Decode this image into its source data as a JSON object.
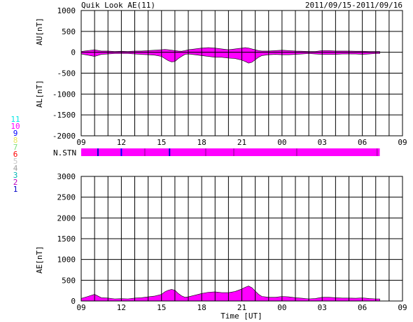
{
  "header": {
    "title": "Quik Look AE(11)",
    "date_range": "2011/09/15-2011/09/16"
  },
  "station_legend": [
    {
      "label": "11",
      "color": "#00e5e5"
    },
    {
      "label": "10",
      "color": "#ff00ff"
    },
    {
      "label": "9",
      "color": "#0000ff"
    },
    {
      "label": "8",
      "color": "#e8e85a"
    },
    {
      "label": "7",
      "color": "#7be07b"
    },
    {
      "label": "6",
      "color": "#ff0000"
    },
    {
      "label": "5",
      "color": "#c8c8c8"
    },
    {
      "label": "4",
      "color": "#a0a0a0"
    },
    {
      "label": "3",
      "color": "#00b4b4"
    },
    {
      "label": "2",
      "color": "#c000c0"
    },
    {
      "label": "1",
      "color": "#0000c8"
    }
  ],
  "x_tick_labels": [
    "09",
    "12",
    "15",
    "18",
    "21",
    "00",
    "03",
    "06",
    "09"
  ],
  "x_axis_title": "Time [UT]",
  "nstn_label": "N.STN",
  "chart_data": [
    {
      "type": "area",
      "name": "AU/AL",
      "ylabel_top": "AU[nT]",
      "ylabel_bottom": "AL[nT]",
      "ylim": [
        -2000,
        1000
      ],
      "yticks": [
        1000,
        500,
        0,
        -500,
        -1000,
        -1500,
        -2000
      ],
      "xlim_hours": [
        9,
        33
      ],
      "grid": "vertical-each-hour",
      "fill_color": "#ff00ff",
      "x_hours": [
        9.0,
        9.5,
        10.0,
        10.5,
        11.0,
        11.5,
        12.0,
        12.5,
        13.0,
        13.5,
        14.0,
        14.5,
        15.0,
        15.25,
        15.5,
        15.75,
        16.0,
        16.25,
        16.5,
        16.75,
        17.0,
        17.5,
        18.0,
        18.5,
        19.0,
        19.5,
        20.0,
        20.5,
        21.0,
        21.25,
        21.5,
        21.75,
        22.0,
        22.25,
        22.5,
        23.0,
        23.5,
        24.0,
        24.5,
        25.0,
        25.5,
        26.0,
        26.5,
        27.0,
        27.5,
        28.0,
        28.5,
        29.0,
        29.5,
        30.0,
        30.5,
        31.0,
        31.3
      ],
      "au": [
        20,
        40,
        60,
        30,
        30,
        20,
        25,
        20,
        30,
        30,
        40,
        50,
        60,
        70,
        60,
        50,
        40,
        30,
        25,
        40,
        60,
        80,
        100,
        110,
        100,
        80,
        60,
        80,
        100,
        110,
        100,
        80,
        60,
        40,
        30,
        30,
        40,
        50,
        40,
        30,
        25,
        20,
        20,
        40,
        40,
        30,
        30,
        30,
        25,
        25,
        20,
        20,
        20
      ],
      "al": [
        -40,
        -70,
        -100,
        -50,
        -40,
        -30,
        -30,
        -30,
        -40,
        -50,
        -60,
        -70,
        -100,
        -150,
        -200,
        -230,
        -220,
        -150,
        -100,
        -50,
        -40,
        -60,
        -80,
        -100,
        -120,
        -120,
        -140,
        -150,
        -190,
        -220,
        -260,
        -240,
        -180,
        -120,
        -80,
        -60,
        -50,
        -60,
        -60,
        -50,
        -40,
        -30,
        -40,
        -50,
        -50,
        -50,
        -40,
        -40,
        -40,
        -50,
        -40,
        -30,
        -30
      ]
    },
    {
      "type": "area",
      "name": "AE",
      "ylabel": "AE[nT]",
      "ylim": [
        0,
        3000
      ],
      "yticks": [
        3000,
        2500,
        2000,
        1500,
        1000,
        500,
        0
      ],
      "xlim_hours": [
        9,
        33
      ],
      "grid": "vertical-each-hour",
      "fill_color": "#ff00ff",
      "x_hours": [
        9.0,
        9.5,
        10.0,
        10.5,
        11.0,
        11.5,
        12.0,
        12.5,
        13.0,
        13.5,
        14.0,
        14.5,
        15.0,
        15.25,
        15.5,
        15.75,
        16.0,
        16.25,
        16.5,
        16.75,
        17.0,
        17.5,
        18.0,
        18.5,
        19.0,
        19.5,
        20.0,
        20.5,
        21.0,
        21.25,
        21.5,
        21.75,
        22.0,
        22.25,
        22.5,
        23.0,
        23.5,
        24.0,
        24.5,
        25.0,
        25.5,
        26.0,
        26.5,
        27.0,
        27.5,
        28.0,
        28.5,
        29.0,
        29.5,
        30.0,
        30.5,
        31.0,
        31.3
      ],
      "values": [
        60,
        110,
        160,
        80,
        70,
        50,
        55,
        50,
        70,
        80,
        100,
        120,
        160,
        220,
        260,
        280,
        260,
        180,
        125,
        90,
        100,
        140,
        180,
        210,
        220,
        200,
        200,
        230,
        290,
        330,
        360,
        320,
        240,
        160,
        110,
        90,
        90,
        110,
        100,
        80,
        65,
        50,
        60,
        90,
        90,
        80,
        70,
        70,
        65,
        75,
        60,
        50,
        50
      ]
    },
    {
      "type": "heatmap",
      "name": "N.STN",
      "xlim_hours": [
        9,
        33
      ],
      "base_value": 10,
      "base_color": "#ff00ff",
      "marks": [
        {
          "x_hours": 10.25,
          "value": 1,
          "color": "#0000c8"
        },
        {
          "x_hours": 12.0,
          "value": 9,
          "color": "#0000ff"
        },
        {
          "x_hours": 13.75,
          "value": 2,
          "color": "#c000c0"
        },
        {
          "x_hours": 15.6,
          "value": 1,
          "color": "#0000c8"
        },
        {
          "x_hours": 18.3,
          "value": 2,
          "color": "#c000c0"
        },
        {
          "x_hours": 20.4,
          "value": 2,
          "color": "#c000c0"
        },
        {
          "x_hours": 25.1,
          "value": 2,
          "color": "#c000c0"
        },
        {
          "x_hours": 31.1,
          "value": 2,
          "color": "#c000c0"
        }
      ],
      "end_hours": 31.3
    }
  ]
}
